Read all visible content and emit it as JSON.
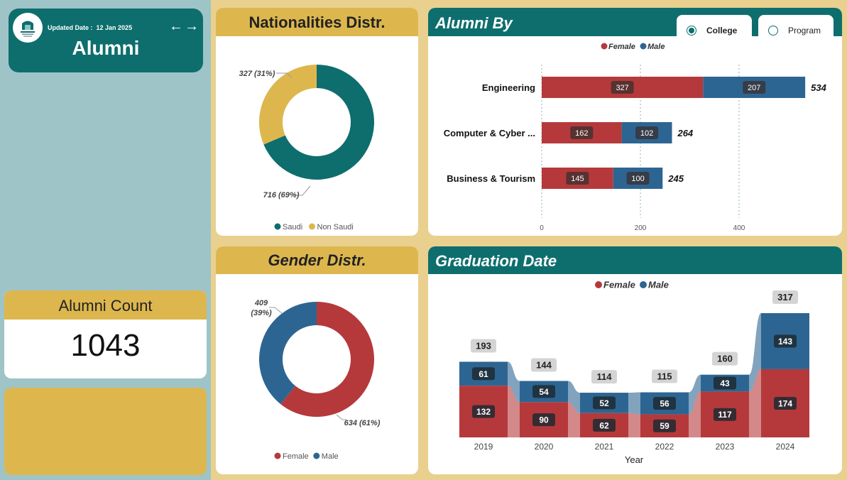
{
  "header": {
    "updated_label": "Updated Date :",
    "updated_value": "12 Jan 2025",
    "title": "Alumni",
    "prev_icon": "arrow-left-icon",
    "next_icon": "arrow-right-icon"
  },
  "alumni_count": {
    "label": "Alumni Count",
    "value": "1043"
  },
  "colors": {
    "teal": "#0e6e6e",
    "gold": "#ddb74e",
    "female": "#b5393b",
    "male": "#2d6592"
  },
  "nationalities": {
    "title": "Nationalities Distr."
  },
  "gender": {
    "title": "Gender Distr."
  },
  "alumni_by": {
    "title": "Alumni By",
    "options": [
      "College",
      "Program"
    ],
    "selected": "College"
  },
  "graduation": {
    "title": "Graduation Date"
  },
  "chart_data": [
    {
      "id": "nationalities",
      "type": "pie",
      "donut": true,
      "slices": [
        {
          "label": "Saudi",
          "value": 716,
          "percent": "69%"
        },
        {
          "label": "Non Saudi",
          "value": 327,
          "percent": "31%"
        }
      ],
      "data_labels": [
        "716 (69%)",
        "327 (31%)"
      ],
      "legend": [
        "Saudi",
        "Non Saudi"
      ],
      "legend_position": "bottom"
    },
    {
      "id": "gender",
      "type": "pie",
      "donut": true,
      "slices": [
        {
          "label": "Female",
          "value": 634,
          "percent": "61%"
        },
        {
          "label": "Male",
          "value": 409,
          "percent": "39%"
        }
      ],
      "data_labels": [
        "634 (61%)",
        "409",
        "(39%)"
      ],
      "legend": [
        "Female",
        "Male"
      ],
      "legend_position": "bottom"
    },
    {
      "id": "alumni_by",
      "type": "bar",
      "orientation": "horizontal",
      "stacked": true,
      "categories": [
        "Engineering",
        "Computer & Cyber ...",
        "Business & Tourism"
      ],
      "series": [
        {
          "name": "Female",
          "values": [
            327,
            162,
            145
          ]
        },
        {
          "name": "Male",
          "values": [
            207,
            102,
            100
          ]
        }
      ],
      "totals": [
        534,
        264,
        245
      ],
      "xlim": [
        0,
        534
      ],
      "xticks": [
        "0",
        "200",
        "400"
      ],
      "legend_position": "top-center"
    },
    {
      "id": "graduation",
      "type": "bar",
      "stacked": true,
      "categories": [
        "2019",
        "2020",
        "2021",
        "2022",
        "2023",
        "2024"
      ],
      "series": [
        {
          "name": "Female",
          "values": [
            132,
            90,
            62,
            59,
            117,
            174
          ]
        },
        {
          "name": "Male",
          "values": [
            61,
            54,
            52,
            56,
            43,
            143
          ]
        }
      ],
      "totals": [
        193,
        144,
        114,
        115,
        160,
        317
      ],
      "xlabel": "Year",
      "legend_position": "top-center"
    }
  ]
}
